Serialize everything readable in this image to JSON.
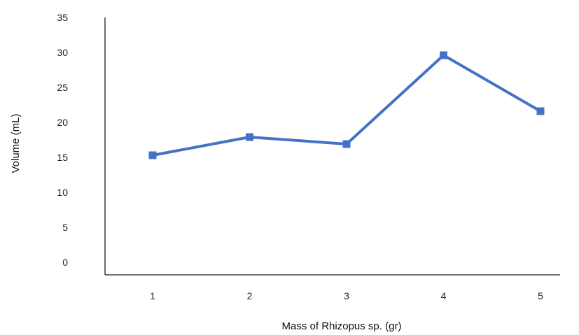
{
  "chart_data": {
    "type": "line",
    "title": "",
    "xlabel": "Mass of Rhizopus sp. (gr)",
    "ylabel": "Volume (mL)",
    "categories": [
      "1",
      "2",
      "3",
      "4",
      "5"
    ],
    "series": [
      {
        "values": [
          15.3,
          17.9,
          16.9,
          29.6,
          21.6
        ],
        "color": "#4472C4",
        "marker": "square"
      }
    ],
    "ylim": [
      0,
      35
    ],
    "yticks": [
      "0",
      "5",
      "10",
      "15",
      "20",
      "25",
      "30",
      "35"
    ],
    "grid": false,
    "legend": "none"
  }
}
